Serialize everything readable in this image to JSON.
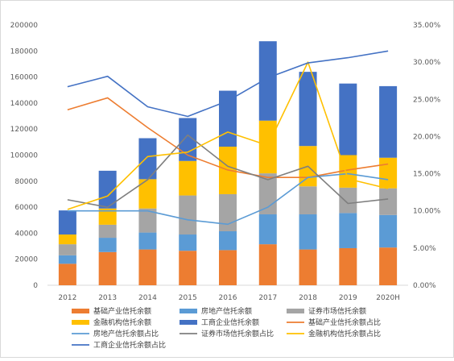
{
  "chart_data": {
    "type": "bar",
    "stacked": true,
    "categories": [
      "2012",
      "2013",
      "2014",
      "2015",
      "2016",
      "2017",
      "2018",
      "2019",
      "2020H"
    ],
    "y_left": {
      "min": 0,
      "max": 200000,
      "ticks": [
        "0",
        "20000",
        "40000",
        "60000",
        "80000",
        "100000",
        "120000",
        "140000",
        "160000",
        "180000",
        "200000"
      ]
    },
    "y_right": {
      "min": 0,
      "max": 35,
      "ticks": [
        "0.00%",
        "5.00%",
        "10.00%",
        "15.00%",
        "20.00%",
        "25.00%",
        "30.00%",
        "35.00%"
      ]
    },
    "grid": false,
    "legend_position": "bottom",
    "bar_series": [
      {
        "name": "基础产业信托余额",
        "color": "#ed7d31",
        "values": [
          16500,
          25500,
          27500,
          26500,
          27000,
          31500,
          27500,
          28500,
          29000
        ]
      },
      {
        "name": "房地产信托余额",
        "color": "#5b9bd5",
        "values": [
          6500,
          11000,
          13000,
          12500,
          14500,
          23000,
          27000,
          27000,
          25000
        ]
      },
      {
        "name": "证券市场信托余额",
        "color": "#a5a5a5",
        "values": [
          8500,
          10000,
          18500,
          30000,
          28500,
          31500,
          21500,
          19500,
          20500
        ]
      },
      {
        "name": "金融机构信托余额",
        "color": "#ffc000",
        "values": [
          7500,
          12500,
          22500,
          26500,
          36500,
          40500,
          31000,
          25000,
          23500
        ]
      },
      {
        "name": "工商企业信托余额",
        "color": "#4472c4",
        "values": [
          18500,
          29000,
          31500,
          33000,
          43000,
          61000,
          57000,
          55000,
          55000
        ]
      }
    ],
    "line_series": [
      {
        "name": "基础产业信托余额占比",
        "color": "#ed7d31",
        "values": [
          23.6,
          25.2,
          21.2,
          17.5,
          15.5,
          14.5,
          14.5,
          15.5,
          16.3
        ]
      },
      {
        "name": "房地产信托余额占比",
        "color": "#5b9bd5",
        "values": [
          10.0,
          10.0,
          10.0,
          8.8,
          8.2,
          10.5,
          14.5,
          15.0,
          14.2
        ]
      },
      {
        "name": "证券市场信托余额占比",
        "color": "#7f7f7f",
        "values": [
          11.5,
          10.5,
          14.2,
          20.2,
          16.0,
          14.2,
          16.0,
          11.0,
          11.6
        ]
      },
      {
        "name": "金融机构信托余额占比",
        "color": "#ffc000",
        "values": [
          10.2,
          12.0,
          17.3,
          17.9,
          20.6,
          18.8,
          30.0,
          14.3,
          13.0
        ]
      },
      {
        "name": "工商企业信托余额占比",
        "color": "#4472c4",
        "values": [
          26.7,
          28.1,
          24.0,
          22.7,
          24.8,
          27.9,
          29.9,
          30.6,
          31.5
        ]
      }
    ]
  }
}
